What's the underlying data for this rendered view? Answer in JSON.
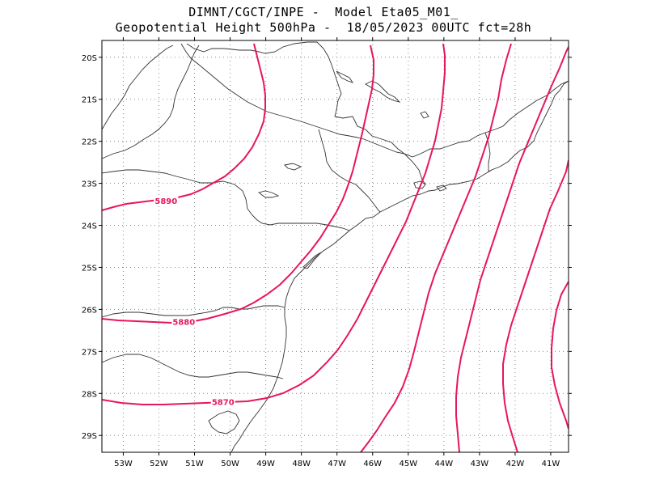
{
  "header": {
    "line1": "DIMNT/CGCT/INPE -  Model Eta05_M01_",
    "line2": "Geopotential Height 500hPa -  18/05/2023 00UTC fct=28h"
  },
  "map": {
    "lon_range": [
      -53.6,
      -40.5
    ],
    "lat_range": [
      -29.4,
      -19.6
    ],
    "grid_dotted": true,
    "contour_color": "#e8155f",
    "coast_color": "#333333",
    "x_ticks": [
      {
        "lon": -53,
        "label": "53W"
      },
      {
        "lon": -52,
        "label": "52W"
      },
      {
        "lon": -51,
        "label": "51W"
      },
      {
        "lon": -50,
        "label": "50W"
      },
      {
        "lon": -49,
        "label": "49W"
      },
      {
        "lon": -48,
        "label": "48W"
      },
      {
        "lon": -47,
        "label": "47W"
      },
      {
        "lon": -46,
        "label": "46W"
      },
      {
        "lon": -45,
        "label": "45W"
      },
      {
        "lon": -44,
        "label": "44W"
      },
      {
        "lon": -43,
        "label": "43W"
      },
      {
        "lon": -42,
        "label": "42W"
      },
      {
        "lon": -41,
        "label": "41W"
      }
    ],
    "y_ticks": [
      {
        "lat": -20,
        "label": "20S"
      },
      {
        "lat": -21,
        "label": "21S"
      },
      {
        "lat": -22,
        "label": "22S"
      },
      {
        "lat": -23,
        "label": "23S"
      },
      {
        "lat": -24,
        "label": "24S"
      },
      {
        "lat": -25,
        "label": "25S"
      },
      {
        "lat": -26,
        "label": "26S"
      },
      {
        "lat": -27,
        "label": "27S"
      },
      {
        "lat": -28,
        "label": "28S"
      },
      {
        "lat": -29,
        "label": "29S"
      }
    ],
    "contour_labels": [
      {
        "text": "5890",
        "lon": -51.8,
        "lat": -23.41
      },
      {
        "text": "5880",
        "lon": -51.3,
        "lat": -26.29
      },
      {
        "text": "5870",
        "lon": -50.2,
        "lat": -28.2
      }
    ]
  }
}
